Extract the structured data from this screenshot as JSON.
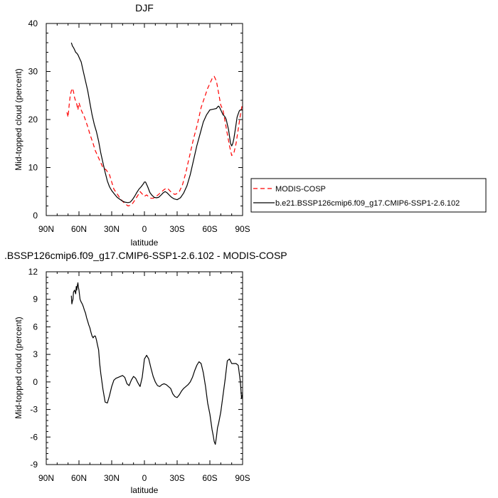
{
  "chart_data": [
    {
      "type": "line",
      "title": "DJF",
      "xlabel": "latitude",
      "ylabel": "Mid-topped cloud (percent)",
      "xlim": [
        -90,
        90
      ],
      "ylim": [
        0,
        40
      ],
      "x_ticks": [
        {
          "value": -90,
          "label": "90N"
        },
        {
          "value": -60,
          "label": "60N"
        },
        {
          "value": -30,
          "label": "30N"
        },
        {
          "value": 0,
          "label": "0"
        },
        {
          "value": 30,
          "label": "30S"
        },
        {
          "value": 60,
          "label": "60S"
        },
        {
          "value": 90,
          "label": "90S"
        }
      ],
      "y_ticks": [
        0,
        10,
        20,
        30,
        40
      ],
      "grid": false,
      "legend_position": "right",
      "series": [
        {
          "name": "MODIS-COSP",
          "color": "#ff0000",
          "dash": "dashed",
          "x": [
            -71,
            -70,
            -69,
            -68,
            -67,
            -66,
            -65,
            -64,
            -63,
            -62,
            -61,
            -60,
            -58,
            -55,
            -52,
            -50,
            -47,
            -45,
            -42,
            -40,
            -38,
            -35,
            -32,
            -30,
            -28,
            -25,
            -22,
            -20,
            -18,
            -15,
            -12,
            -10,
            -8,
            -6,
            -4,
            -2,
            0,
            2,
            4,
            6,
            8,
            10,
            12,
            14,
            16,
            18,
            20,
            22,
            24,
            26,
            28,
            30,
            32,
            35,
            38,
            40,
            42,
            45,
            48,
            50,
            52,
            55,
            58,
            60,
            62,
            64,
            66,
            68,
            70,
            72,
            74,
            76,
            78,
            80,
            82,
            84,
            86,
            88,
            90
          ],
          "y": [
            21.5,
            20.5,
            23.0,
            25.0,
            26.0,
            26.5,
            25.8,
            24.5,
            23.8,
            23.2,
            22.0,
            23.5,
            22.0,
            20.5,
            18.5,
            17.0,
            15.0,
            13.5,
            12.0,
            11.0,
            10.0,
            9.5,
            8.5,
            7.0,
            5.5,
            4.5,
            3.5,
            3.0,
            2.5,
            2.0,
            2.2,
            2.8,
            3.5,
            4.2,
            5.0,
            4.5,
            4.0,
            4.3,
            3.9,
            3.6,
            3.6,
            3.9,
            4.2,
            4.6,
            5.0,
            5.4,
            5.7,
            5.5,
            5.0,
            4.6,
            4.4,
            4.6,
            5.0,
            6.5,
            9.0,
            11.0,
            13.0,
            16.0,
            18.5,
            20.5,
            22.5,
            24.5,
            26.5,
            27.5,
            28.5,
            29.0,
            28.0,
            25.5,
            23.0,
            22.0,
            19.5,
            17.0,
            14.5,
            12.5,
            13.0,
            15.0,
            18.0,
            21.0,
            23.5
          ]
        },
        {
          "name": "b.e21.BSSP126cmip6.f09_g17.CMIP6-SSP1-2.6.102",
          "color": "#000000",
          "dash": "solid",
          "x": [
            -67,
            -66,
            -65,
            -64,
            -63,
            -62,
            -61,
            -60,
            -59,
            -58,
            -56,
            -54,
            -52,
            -50,
            -48,
            -46,
            -44,
            -42,
            -40,
            -38,
            -36,
            -34,
            -32,
            -30,
            -28,
            -25,
            -22,
            -20,
            -18,
            -15,
            -13,
            -11,
            -9,
            -7,
            -5,
            -3,
            -1,
            0,
            1,
            3,
            5,
            7,
            9,
            11,
            13,
            15,
            17,
            19,
            21,
            23,
            25,
            27,
            30,
            33,
            36,
            39,
            42,
            45,
            48,
            51,
            54,
            57,
            60,
            62,
            64,
            66,
            67,
            68,
            69,
            70,
            71,
            72,
            73,
            74,
            75,
            76,
            77,
            78,
            79,
            80,
            81,
            82,
            83,
            84,
            85,
            86,
            87,
            88,
            89,
            90
          ],
          "y": [
            36.0,
            35.3,
            35.0,
            34.5,
            34.0,
            33.8,
            33.5,
            33.0,
            32.5,
            32.0,
            30.0,
            28.0,
            26.0,
            23.5,
            21.0,
            19.0,
            17.5,
            15.5,
            13.0,
            11.0,
            9.0,
            7.2,
            6.0,
            5.2,
            4.6,
            3.8,
            3.3,
            3.0,
            2.8,
            2.7,
            2.8,
            3.3,
            4.0,
            4.8,
            5.5,
            6.0,
            6.6,
            7.0,
            7.0,
            6.0,
            4.8,
            4.2,
            3.8,
            3.7,
            3.8,
            4.2,
            4.7,
            5.0,
            4.7,
            4.2,
            3.8,
            3.5,
            3.3,
            3.7,
            4.7,
            6.2,
            8.5,
            11.5,
            14.5,
            17.0,
            19.5,
            21.0,
            22.0,
            22.1,
            22.2,
            22.3,
            22.6,
            22.8,
            22.5,
            22.0,
            21.5,
            21.0,
            20.8,
            20.5,
            20.0,
            19.0,
            18.0,
            16.5,
            15.0,
            14.5,
            15.0,
            16.0,
            17.5,
            19.0,
            20.5,
            21.2,
            21.8,
            22.0,
            22.0,
            22.0
          ]
        }
      ]
    },
    {
      "type": "line",
      "title": ".BSSP126cmip6.f09_g17.CMIP6-SSP1-2.6.102 - MODIS-COSP",
      "xlabel": "latitude",
      "ylabel": "Mid-topped cloud (percent)",
      "xlim": [
        -90,
        90
      ],
      "ylim": [
        -9,
        12
      ],
      "x_ticks": [
        {
          "value": -90,
          "label": "90N"
        },
        {
          "value": -60,
          "label": "60N"
        },
        {
          "value": -30,
          "label": "30N"
        },
        {
          "value": 0,
          "label": "0"
        },
        {
          "value": 30,
          "label": "30S"
        },
        {
          "value": 60,
          "label": "60S"
        },
        {
          "value": 90,
          "label": "90S"
        }
      ],
      "y_ticks": [
        -9,
        -6,
        -3,
        0,
        3,
        6,
        9,
        12
      ],
      "grid": false,
      "series": [
        {
          "color": "#000000",
          "dash": "solid",
          "x": [
            -67,
            -66.5,
            -66,
            -65.5,
            -65,
            -64,
            -63,
            -62.5,
            -62,
            -61.5,
            -61,
            -60.5,
            -60,
            -59,
            -58,
            -57,
            -56,
            -55,
            -54,
            -53,
            -52,
            -51,
            -50,
            -49,
            -48,
            -47,
            -46,
            -45,
            -44,
            -43,
            -42,
            -41,
            -40,
            -38,
            -36,
            -34,
            -32,
            -30,
            -28,
            -26,
            -24,
            -22,
            -20,
            -18,
            -16,
            -14,
            -12,
            -10,
            -8,
            -6,
            -4,
            -2,
            0,
            2,
            4,
            6,
            8,
            10,
            12,
            14,
            16,
            18,
            20,
            22,
            24,
            26,
            28,
            30,
            32,
            34,
            36,
            38,
            40,
            42,
            44,
            46,
            48,
            50,
            52,
            54,
            56,
            58,
            60,
            62,
            63,
            64,
            65,
            66,
            67,
            68,
            70,
            72,
            74,
            76,
            78,
            80,
            82,
            84,
            86,
            88,
            89,
            90
          ],
          "y": [
            9.4,
            8.5,
            8.8,
            9.0,
            9.8,
            10.0,
            9.6,
            10.4,
            10.0,
            10.5,
            10.8,
            10.3,
            10.0,
            9.0,
            8.7,
            8.5,
            8.2,
            7.8,
            7.5,
            7.0,
            6.6,
            6.2,
            5.9,
            5.4,
            5.0,
            4.8,
            5.0,
            5.0,
            4.6,
            4.0,
            3.5,
            2.0,
            0.9,
            -0.8,
            -2.2,
            -2.3,
            -1.5,
            -0.5,
            0.2,
            0.4,
            0.5,
            0.6,
            0.7,
            0.5,
            -0.2,
            -0.4,
            0.2,
            0.6,
            0.4,
            -0.1,
            -0.5,
            0.5,
            2.5,
            2.9,
            2.5,
            1.5,
            0.6,
            0.0,
            -0.4,
            -0.5,
            -0.3,
            -0.2,
            -0.3,
            -0.5,
            -0.7,
            -1.3,
            -1.6,
            -1.7,
            -1.4,
            -1.0,
            -0.7,
            -0.5,
            -0.3,
            0.0,
            0.5,
            1.2,
            1.8,
            2.2,
            2.0,
            1.0,
            -0.5,
            -2.3,
            -3.5,
            -5.2,
            -5.8,
            -6.5,
            -6.8,
            -6.0,
            -5.0,
            -4.5,
            -3.3,
            -1.5,
            0.3,
            2.3,
            2.5,
            2.0,
            2.0,
            2.0,
            1.8,
            0.0,
            -1.8,
            -1.3
          ]
        }
      ]
    }
  ]
}
